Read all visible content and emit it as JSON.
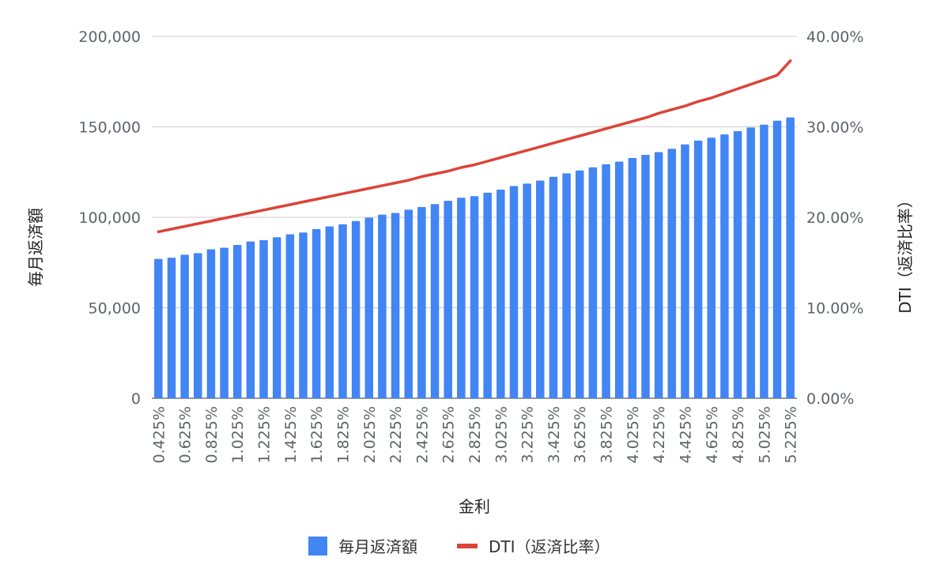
{
  "chart_data": {
    "type": "bar",
    "title": "",
    "xlabel": "金利",
    "ylabel": "毎月返済額",
    "y2label": "DTI（返済比率）",
    "ylim": [
      0,
      200000
    ],
    "y2lim": [
      0,
      0.4
    ],
    "yticks": [
      "0",
      "50,000",
      "100,000",
      "150,000",
      "200,000"
    ],
    "y2ticks": [
      "0.00%",
      "10.00%",
      "20.00%",
      "30.00%",
      "40.00%"
    ],
    "grid": true,
    "legend_position": "bottom",
    "x_tick_labels": [
      "0.425%",
      "0.625%",
      "0.825%",
      "1.025%",
      "1.225%",
      "1.425%",
      "1.625%",
      "1.825%",
      "2.025%",
      "2.225%",
      "2.425%",
      "2.625%",
      "2.825%",
      "3.025%",
      "3.225%",
      "3.425%",
      "3.625%",
      "3.825%",
      "4.025%",
      "4.225%",
      "4.425%",
      "4.625%",
      "4.825%",
      "5.025%",
      "5.225%"
    ],
    "x": [
      "0.425%",
      "0.525%",
      "0.625%",
      "0.725%",
      "0.825%",
      "0.925%",
      "1.025%",
      "1.125%",
      "1.225%",
      "1.325%",
      "1.425%",
      "1.525%",
      "1.625%",
      "1.725%",
      "1.825%",
      "1.925%",
      "2.025%",
      "2.125%",
      "2.225%",
      "2.325%",
      "2.425%",
      "2.525%",
      "2.625%",
      "2.725%",
      "2.825%",
      "2.925%",
      "3.025%",
      "3.125%",
      "3.225%",
      "3.325%",
      "3.425%",
      "3.525%",
      "3.625%",
      "3.725%",
      "3.825%",
      "3.925%",
      "4.025%",
      "4.125%",
      "4.225%",
      "4.325%",
      "4.425%",
      "4.525%",
      "4.625%",
      "4.725%",
      "4.825%",
      "4.925%",
      "5.025%",
      "5.125%",
      "5.225%"
    ],
    "series": [
      {
        "name": "毎月返済額",
        "type": "bar",
        "axis": "left",
        "color": "#4285f4",
        "values": [
          77000,
          77700,
          79300,
          80200,
          82300,
          83200,
          84700,
          86600,
          87400,
          89000,
          90600,
          91600,
          93500,
          95000,
          96100,
          97900,
          99800,
          101500,
          102400,
          104200,
          105700,
          107300,
          109100,
          110800,
          111700,
          113600,
          115300,
          117300,
          118600,
          120300,
          122400,
          124300,
          125900,
          127600,
          129300,
          130800,
          132800,
          134500,
          136000,
          137900,
          140300,
          142400,
          144000,
          145800,
          147600,
          149600,
          151200,
          153400,
          155200
        ]
      },
      {
        "name": "DTI（返済比率）",
        "type": "line",
        "axis": "right",
        "color": "#db4437",
        "values": [
          0.184,
          0.187,
          0.19,
          0.193,
          0.196,
          0.199,
          0.202,
          0.205,
          0.208,
          0.211,
          0.214,
          0.217,
          0.22,
          0.223,
          0.226,
          0.229,
          0.232,
          0.235,
          0.238,
          0.241,
          0.245,
          0.248,
          0.251,
          0.255,
          0.258,
          0.262,
          0.266,
          0.27,
          0.274,
          0.278,
          0.282,
          0.286,
          0.29,
          0.294,
          0.298,
          0.302,
          0.306,
          0.31,
          0.315,
          0.319,
          0.323,
          0.328,
          0.332,
          0.337,
          0.342,
          0.347,
          0.352,
          0.357,
          0.373
        ]
      }
    ]
  }
}
